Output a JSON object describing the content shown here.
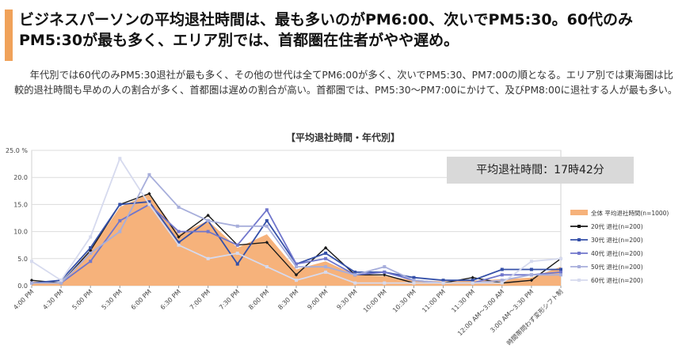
{
  "header": {
    "title": "ビジネスパーソンの平均退社時間は、最も多いのがPM6:00、次いでPM5:30。60代のみPM5:30が最も多く、エリア別では、首都圏在住者がやや遅め。"
  },
  "description": "年代別では60代のみPM5:30退社が最も多く、その他の世代は全てPM6:00が多く、次いでPM5:30、PM7:00の順となる。エリア別では東海圏は比較的退社時間も早めの人の割合が多く、首都圏は遅めの割合が高い。首都圏では、PM5:30～PM7:00にかけて、及びPM8:00に退社する人が最も多い。",
  "avg_box": "平均退社時間：17時42分",
  "colors": {
    "accent": "#f0a25a",
    "area": "#f6b27b",
    "s20": "#1a1a1a",
    "s30": "#3550a8",
    "s40": "#7076cc",
    "s50": "#a7aedb",
    "s60": "#d6daee"
  },
  "chart_data": {
    "type": "line",
    "title": "【平均退社時間・年代別】",
    "ylabel_unit": "%",
    "ylim": [
      0,
      25
    ],
    "yticks": [
      "0.0",
      "5.0",
      "10.0",
      "15.0",
      "20.0",
      "25.0"
    ],
    "categories": [
      "4:00 PM",
      "4:30 PM",
      "5:00 PM",
      "5:30 PM",
      "6:00 PM",
      "6:30 PM",
      "7:00 PM",
      "7:30 PM",
      "8:00 PM",
      "8:30 PM",
      "9:00 PM",
      "9:30 PM",
      "10:00 PM",
      "10:30 PM",
      "11:00 PM",
      "11:30 PM",
      "12:00 AM～3:00 AM",
      "3:00 AM～3:30 PM",
      "時間帯問わず変形シフト制"
    ],
    "series": [
      {
        "name": "全体 平均退社時間(n=1000)",
        "kind": "area",
        "values": [
          0.8,
          0.5,
          6.5,
          14.5,
          17.0,
          9.5,
          12.0,
          7.0,
          9.5,
          3.0,
          4.5,
          2.0,
          1.8,
          1.0,
          0.8,
          0.9,
          1.2,
          1.5,
          3.5
        ]
      },
      {
        "name": "20代 退社(n=200)",
        "values": [
          1.0,
          0.5,
          6.5,
          15.0,
          17.0,
          9.0,
          13.0,
          7.5,
          8.0,
          2.0,
          7.0,
          2.0,
          2.0,
          0.5,
          0.5,
          1.5,
          0.5,
          1.0,
          5.0
        ]
      },
      {
        "name": "30代 退社(n=200)",
        "values": [
          0.5,
          1.0,
          7.0,
          15.0,
          15.5,
          8.0,
          12.0,
          4.0,
          12.0,
          4.0,
          6.0,
          2.5,
          2.5,
          1.5,
          1.0,
          1.0,
          3.0,
          3.0,
          3.0
        ]
      },
      {
        "name": "40代 退社(n=200)",
        "values": [
          0.5,
          0.5,
          4.5,
          12.0,
          15.0,
          10.0,
          10.0,
          7.5,
          14.0,
          4.0,
          5.0,
          2.0,
          2.5,
          1.0,
          0.5,
          0.5,
          2.0,
          2.0,
          2.5
        ]
      },
      {
        "name": "50代 退社(n=200)",
        "values": [
          0.5,
          0.5,
          6.0,
          10.0,
          20.5,
          14.5,
          12.0,
          11.0,
          11.0,
          3.5,
          3.5,
          2.0,
          3.5,
          1.0,
          0.5,
          0.5,
          1.0,
          2.0,
          2.0
        ]
      },
      {
        "name": "60代 退社(n=200)",
        "values": [
          4.5,
          1.0,
          9.0,
          23.5,
          15.0,
          7.5,
          5.0,
          6.0,
          3.5,
          1.0,
          2.5,
          0.5,
          0.5,
          0.5,
          0.5,
          0.5,
          0.5,
          4.5,
          5.0
        ]
      }
    ]
  }
}
